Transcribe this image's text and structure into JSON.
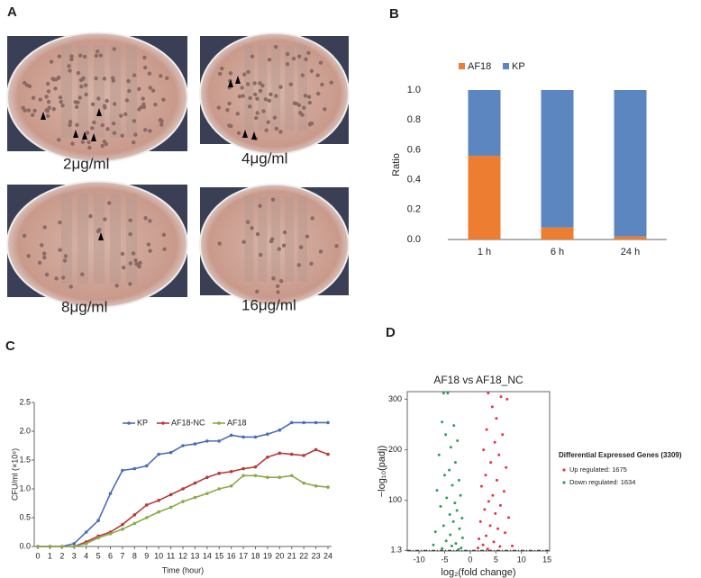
{
  "panel_labels": [
    "A",
    "B",
    "C",
    "D"
  ],
  "panel_a": {
    "labels": [
      "2μg/ml",
      "4μg/ml",
      "8μg/ml",
      "16μg/ml"
    ]
  },
  "chart_data": [
    {
      "type": "bar",
      "stacked": true,
      "y_label": "Ratio",
      "legend": "top",
      "categories": [
        "1 h",
        "6 h",
        "24 h"
      ],
      "series": [
        {
          "name": "AF18",
          "color": "#ed7d31",
          "values": [
            0.56,
            0.08,
            0.02
          ]
        },
        {
          "name": "KP",
          "color": "#5b86c0",
          "values": [
            0.44,
            0.92,
            0.98
          ]
        }
      ],
      "ylim": [
        0,
        1
      ],
      "yticks": [
        {
          "value": 0,
          "label": "0.0"
        },
        {
          "value": 0.2,
          "label": "0.2"
        },
        {
          "value": 0.4,
          "label": "0.4"
        },
        {
          "value": 0.6,
          "label": "0.6"
        },
        {
          "value": 0.8,
          "label": "0.8"
        },
        {
          "value": 1,
          "label": "1.0"
        }
      ]
    },
    {
      "type": "line",
      "x_label": "Time (hour)",
      "y_label": "CFU/ml (×10⁹)",
      "legend": "top",
      "x": [
        0,
        1,
        2,
        3,
        4,
        5,
        6,
        7,
        8,
        9,
        10,
        11,
        12,
        13,
        14,
        15,
        16,
        17,
        18,
        19,
        20,
        21,
        22,
        23,
        24
      ],
      "series": [
        {
          "name": "KP",
          "color": "#4a6fb5",
          "values": [
            0,
            0,
            0,
            0.05,
            0.25,
            0.45,
            0.92,
            1.32,
            1.35,
            1.4,
            1.6,
            1.63,
            1.75,
            1.78,
            1.83,
            1.83,
            1.93,
            1.9,
            1.9,
            1.95,
            2.02,
            2.15,
            2.15,
            2.15,
            2.15
          ]
        },
        {
          "name": "AF18-NC",
          "color": "#b83a3a",
          "values": [
            0,
            0,
            0,
            0,
            0.08,
            0.18,
            0.25,
            0.38,
            0.55,
            0.72,
            0.8,
            0.9,
            1.0,
            1.1,
            1.2,
            1.27,
            1.3,
            1.35,
            1.38,
            1.55,
            1.62,
            1.6,
            1.58,
            1.68,
            1.6
          ]
        },
        {
          "name": "AF18",
          "color": "#8aaa4a",
          "values": [
            0,
            0,
            0,
            0,
            0.05,
            0.15,
            0.22,
            0.3,
            0.4,
            0.5,
            0.6,
            0.68,
            0.78,
            0.85,
            0.92,
            1.0,
            1.05,
            1.23,
            1.23,
            1.2,
            1.2,
            1.23,
            1.1,
            1.05,
            1.03
          ]
        }
      ],
      "xlim": [
        0,
        24
      ],
      "xticks": [
        0,
        1,
        2,
        3,
        4,
        5,
        6,
        7,
        8,
        9,
        10,
        11,
        12,
        13,
        14,
        15,
        16,
        17,
        18,
        19,
        20,
        21,
        22,
        23,
        24
      ],
      "ylim": [
        0,
        2.5
      ],
      "yticks": [
        {
          "value": 0,
          "label": "0.0"
        },
        {
          "value": 0.5,
          "label": "0.5"
        },
        {
          "value": 1,
          "label": "1.0"
        },
        {
          "value": 1.5,
          "label": "1.5"
        },
        {
          "value": 2,
          "label": "2.0"
        },
        {
          "value": 2.5,
          "label": "2.5"
        }
      ]
    },
    {
      "type": "scatter",
      "title": "AF18 vs AF18_NC",
      "x_label": "log₂(fold change)",
      "y_label": "−log₁₀(padj)",
      "legend_title": "Differential Expressed Genes  (3309)",
      "hline": 1.3,
      "series": [
        {
          "name": "Up regulated: 1675",
          "color": "#e8334a",
          "x": [
            3.5,
            6.0,
            7.2,
            4.3,
            5.1,
            3.2,
            6.3,
            4.8,
            2.6,
            5.6,
            4.0,
            7.0,
            3.0,
            5.2,
            2.2,
            6.6,
            4.4,
            3.6,
            5.9,
            2.8,
            4.9,
            7.5,
            2.0,
            3.9,
            5.4,
            6.8,
            3.1,
            1.7,
            4.6,
            2.5,
            5.8,
            1.5,
            3.4,
            8.2
          ],
          "values": [
            312,
            305,
            300,
            285,
            262,
            240,
            230,
            215,
            200,
            190,
            175,
            165,
            150,
            140,
            128,
            118,
            110,
            98,
            90,
            82,
            74,
            66,
            58,
            50,
            44,
            36,
            30,
            24,
            18,
            12,
            9,
            6,
            4,
            10
          ]
        },
        {
          "name": "Down regulated: 1634",
          "color": "#2e9e5b",
          "x": [
            -5.2,
            -4.4,
            -5.5,
            -3.2,
            -4.8,
            -2.5,
            -3.8,
            -6.1,
            -2.9,
            -4.1,
            -5.0,
            -2.2,
            -3.5,
            -6.5,
            -1.9,
            -4.6,
            -3.0,
            -5.8,
            -2.6,
            -4.0,
            -1.6,
            -3.3,
            -5.2,
            -2.1,
            -6.8,
            -3.9,
            -1.5,
            -4.7,
            -2.8,
            -3.6,
            -1.8,
            -5.5,
            -2.3,
            -7.2
          ],
          "values": [
            312,
            312,
            255,
            248,
            230,
            218,
            205,
            190,
            175,
            160,
            150,
            140,
            130,
            120,
            110,
            105,
            95,
            88,
            80,
            72,
            65,
            58,
            50,
            44,
            38,
            32,
            26,
            20,
            15,
            10,
            6,
            5,
            3,
            12
          ]
        }
      ],
      "xlim": [
        -12.3,
        15.5
      ],
      "xticks": [
        -10,
        -5,
        0,
        5,
        10,
        15
      ],
      "ylim": [
        0,
        315
      ],
      "yticks": [
        1.3,
        100,
        200,
        300
      ]
    }
  ]
}
